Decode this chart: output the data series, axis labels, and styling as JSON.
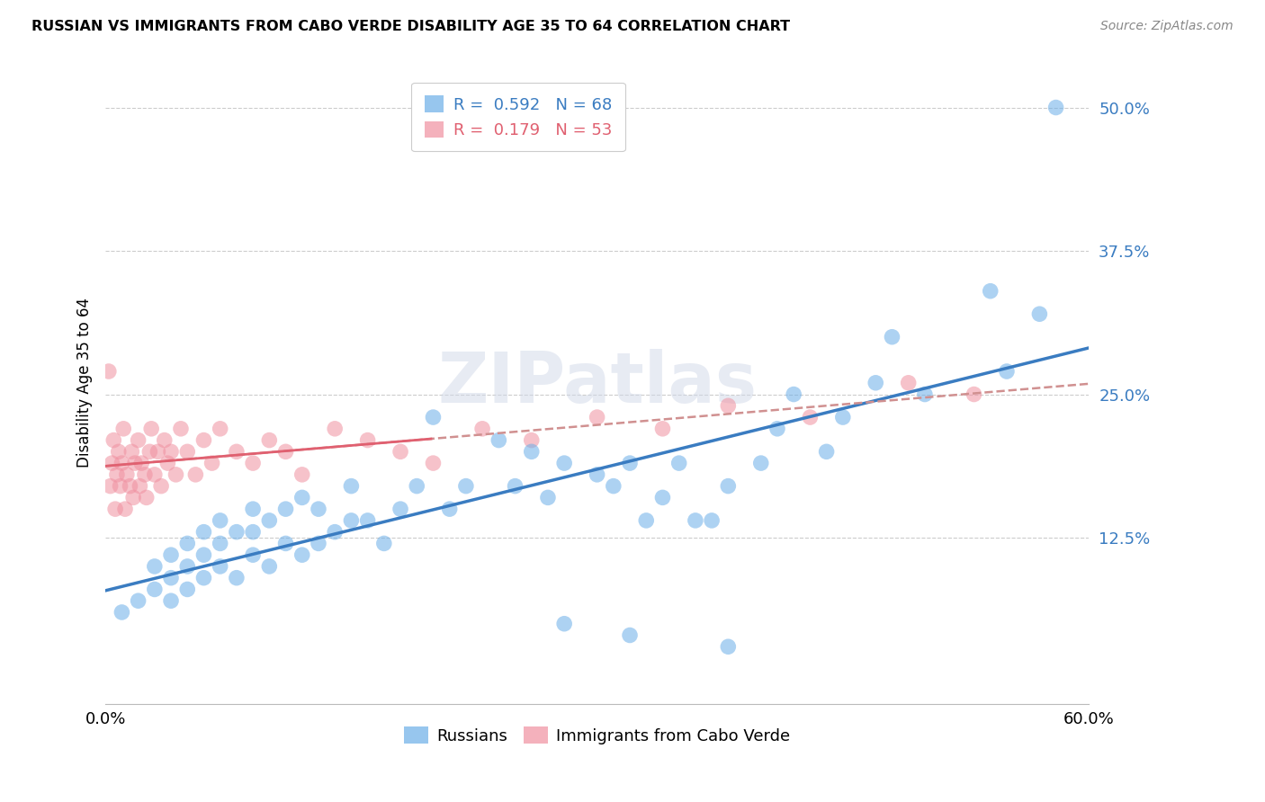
{
  "title": "RUSSIAN VS IMMIGRANTS FROM CABO VERDE DISABILITY AGE 35 TO 64 CORRELATION CHART",
  "source": "Source: ZipAtlas.com",
  "ylabel": "Disability Age 35 to 64",
  "xmin": 0.0,
  "xmax": 0.6,
  "ymin": -0.02,
  "ymax": 0.54,
  "ytick_vals": [
    0.0,
    0.125,
    0.25,
    0.375,
    0.5
  ],
  "ytick_labels": [
    "",
    "12.5%",
    "25.0%",
    "37.5%",
    "50.0%"
  ],
  "xtick_vals": [
    0.0,
    0.1,
    0.2,
    0.3,
    0.4,
    0.5,
    0.6
  ],
  "xtick_labels": [
    "0.0%",
    "",
    "",
    "",
    "",
    "",
    "60.0%"
  ],
  "legend_line1": "R =  0.592   N = 68",
  "legend_line2": "R =  0.179   N = 53",
  "color_blue": "#6baee8",
  "color_pink": "#f090a0",
  "color_blue_line": "#3a7cc1",
  "color_pink_line": "#e06070",
  "color_pink_dashed": "#d09090",
  "watermark": "ZIPatlas",
  "legend_label1": "Russians",
  "legend_label2": "Immigrants from Cabo Verde",
  "russians_x": [
    0.01,
    0.02,
    0.03,
    0.03,
    0.04,
    0.04,
    0.04,
    0.05,
    0.05,
    0.05,
    0.06,
    0.06,
    0.06,
    0.07,
    0.07,
    0.07,
    0.08,
    0.08,
    0.09,
    0.09,
    0.09,
    0.1,
    0.1,
    0.11,
    0.11,
    0.12,
    0.12,
    0.13,
    0.13,
    0.14,
    0.15,
    0.15,
    0.16,
    0.17,
    0.18,
    0.19,
    0.2,
    0.21,
    0.22,
    0.24,
    0.25,
    0.26,
    0.27,
    0.28,
    0.3,
    0.31,
    0.32,
    0.33,
    0.34,
    0.35,
    0.36,
    0.37,
    0.38,
    0.4,
    0.41,
    0.42,
    0.44,
    0.45,
    0.47,
    0.48,
    0.38,
    0.28,
    0.32,
    0.5,
    0.54,
    0.55,
    0.57,
    0.58
  ],
  "russians_y": [
    0.06,
    0.07,
    0.08,
    0.1,
    0.07,
    0.09,
    0.11,
    0.08,
    0.1,
    0.12,
    0.09,
    0.11,
    0.13,
    0.1,
    0.12,
    0.14,
    0.09,
    0.13,
    0.11,
    0.13,
    0.15,
    0.1,
    0.14,
    0.12,
    0.15,
    0.11,
    0.16,
    0.12,
    0.15,
    0.13,
    0.14,
    0.17,
    0.14,
    0.12,
    0.15,
    0.17,
    0.23,
    0.15,
    0.17,
    0.21,
    0.17,
    0.2,
    0.16,
    0.19,
    0.18,
    0.17,
    0.19,
    0.14,
    0.16,
    0.19,
    0.14,
    0.14,
    0.17,
    0.19,
    0.22,
    0.25,
    0.2,
    0.23,
    0.26,
    0.3,
    0.03,
    0.05,
    0.04,
    0.25,
    0.34,
    0.27,
    0.32,
    0.5
  ],
  "cabo_verde_x": [
    0.002,
    0.003,
    0.004,
    0.005,
    0.006,
    0.007,
    0.008,
    0.009,
    0.01,
    0.011,
    0.012,
    0.013,
    0.015,
    0.016,
    0.017,
    0.018,
    0.02,
    0.021,
    0.022,
    0.024,
    0.025,
    0.027,
    0.028,
    0.03,
    0.032,
    0.034,
    0.036,
    0.038,
    0.04,
    0.043,
    0.046,
    0.05,
    0.055,
    0.06,
    0.065,
    0.07,
    0.08,
    0.09,
    0.1,
    0.11,
    0.12,
    0.14,
    0.16,
    0.18,
    0.2,
    0.23,
    0.26,
    0.3,
    0.34,
    0.38,
    0.43,
    0.49,
    0.53
  ],
  "cabo_verde_y": [
    0.27,
    0.17,
    0.19,
    0.21,
    0.15,
    0.18,
    0.2,
    0.17,
    0.19,
    0.22,
    0.15,
    0.18,
    0.17,
    0.2,
    0.16,
    0.19,
    0.21,
    0.17,
    0.19,
    0.18,
    0.16,
    0.2,
    0.22,
    0.18,
    0.2,
    0.17,
    0.21,
    0.19,
    0.2,
    0.18,
    0.22,
    0.2,
    0.18,
    0.21,
    0.19,
    0.22,
    0.2,
    0.19,
    0.21,
    0.2,
    0.18,
    0.22,
    0.21,
    0.2,
    0.19,
    0.22,
    0.21,
    0.23,
    0.22,
    0.24,
    0.23,
    0.26,
    0.25
  ]
}
